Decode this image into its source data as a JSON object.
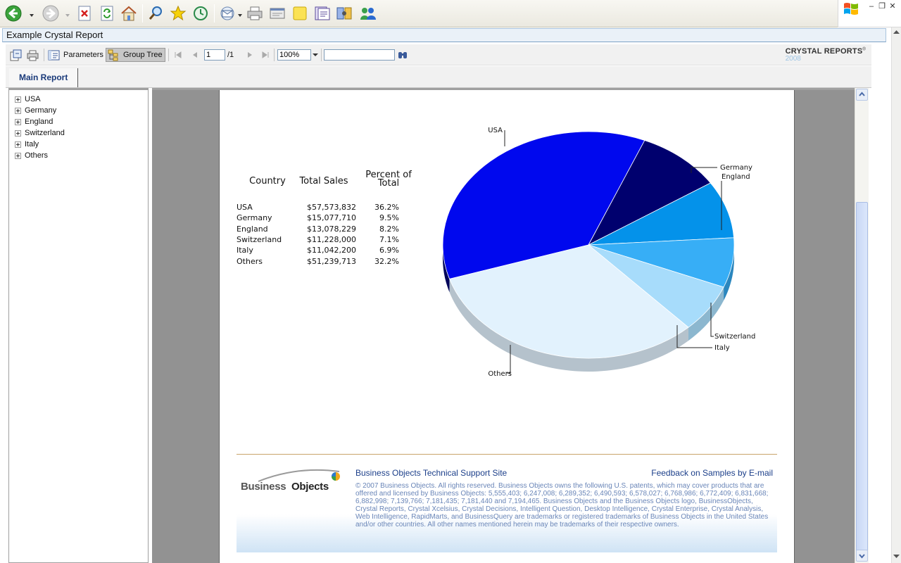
{
  "window": {
    "title": "Example Crystal Report",
    "controls": {
      "minimize": "–",
      "restore": "❐",
      "close": "✕"
    }
  },
  "ie_toolbar": {
    "buttons": [
      "back-icon",
      "forward-icon",
      "stop-icon",
      "refresh-icon",
      "home-icon",
      "search-icon",
      "favorites-icon",
      "history-icon",
      "mail-icon",
      "print-icon",
      "edit-icon",
      "notes-icon",
      "research-icon",
      "media-icon",
      "messenger-icon"
    ]
  },
  "report_toolbar": {
    "parameters_label": "Parameters",
    "group_tree_label": "Group Tree",
    "page_current": "1",
    "page_total": "/1",
    "zoom": "100%",
    "search_value": "",
    "logo_line1": "CRYSTAL REPORTS",
    "logo_mark": "®",
    "logo_line2": "2008"
  },
  "tabs": [
    {
      "label": "Main Report",
      "active": true
    }
  ],
  "group_tree": {
    "items": [
      "USA",
      "Germany",
      "England",
      "Switzerland",
      "Italy",
      "Others"
    ]
  },
  "table": {
    "headers": {
      "country": "Country",
      "total_sales": "Total Sales",
      "percent_line1": "Percent of",
      "percent_line2": "Total"
    },
    "rows": [
      {
        "country": "USA",
        "sales": "$57,573,832",
        "percent": "36.2%"
      },
      {
        "country": "Germany",
        "sales": "$15,077,710",
        "percent": "9.5%"
      },
      {
        "country": "England",
        "sales": "$13,078,229",
        "percent": "8.2%"
      },
      {
        "country": "Switzerland",
        "sales": "$11,228,000",
        "percent": "7.1%"
      },
      {
        "country": "Italy",
        "sales": "$11,042,200",
        "percent": "6.9%"
      },
      {
        "country": "Others",
        "sales": "$51,239,713",
        "percent": "32.2%"
      }
    ]
  },
  "chart_data": {
    "type": "pie",
    "categories": [
      "USA",
      "Germany",
      "England",
      "Switzerland",
      "Italy",
      "Others"
    ],
    "values": [
      36.2,
      9.5,
      8.2,
      7.1,
      6.9,
      32.2
    ],
    "colors": [
      "#0008ee",
      "#00006e",
      "#0492ea",
      "#37aef6",
      "#a7dcfb",
      "#e2f2fd"
    ],
    "side_colors": [
      "#00055a",
      "#000040",
      "#0470b4",
      "#2a86be",
      "#8cb7cf",
      "#b5c2cc"
    ],
    "labels": [
      "USA",
      "Germany",
      "England",
      "Switzerland",
      "Italy",
      "Others"
    ],
    "style": "3d"
  },
  "footer": {
    "logo_word1": "Business",
    "logo_word2": "Objects",
    "support_link": "Business Objects Technical Support Site",
    "feedback_link": "Feedback on Samples by E-mail",
    "legal": "© 2007 Business Objects. All rights reserved. Business Objects owns the following U.S. patents, which may cover products that are offered and licensed by Business Objects: 5,555,403; 6,247,008; 6,289,352; 6,490,593; 6,578,027; 6,768,986; 6,772,409; 6,831,668; 6,882,998; 7,139,766; 7,181,435; 7,181,440 and 7,194,465. Business Objects and the Business Objects logo, BusinessObjects, Crystal Reports, Crystal Xcelsius, Crystal Decisions, Intelligent Question, Desktop Intelligence, Crystal Enterprise, Crystal Analysis, Web Intelligence, RapidMarts, and BusinessQuery are trademarks or registered trademarks of Business Objects in the United States and/or other countries. All other names mentioned herein may be trademarks of their respective owners."
  }
}
